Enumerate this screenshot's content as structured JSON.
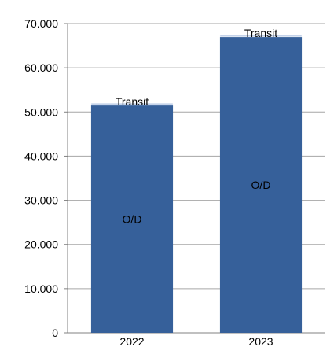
{
  "chart_data": {
    "type": "bar",
    "stacked": true,
    "categories": [
      "2022",
      "2023"
    ],
    "series": [
      {
        "name": "O/D",
        "values": [
          51500,
          67000
        ],
        "color": "#36609A"
      },
      {
        "name": "Transit",
        "values": [
          500,
          500
        ],
        "color": "#C5D3EA"
      }
    ],
    "ylim": [
      0,
      70000
    ],
    "yticks": [
      0,
      10000,
      20000,
      30000,
      40000,
      50000,
      60000,
      70000
    ],
    "ytick_labels": [
      "0",
      "10.000",
      "20.000",
      "30.000",
      "40.000",
      "50.000",
      "60.000",
      "70.000"
    ],
    "grid": true,
    "legend": "none",
    "title": "",
    "xlabel": "",
    "ylabel": ""
  }
}
